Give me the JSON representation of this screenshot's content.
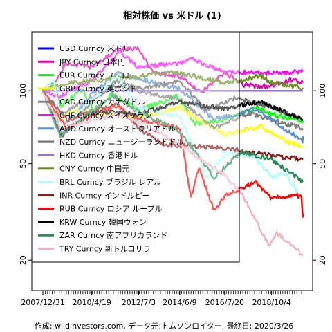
{
  "chart_data": {
    "type": "line",
    "title": "相対株価 vs 米ドル (1)",
    "caption": "作成: wildinvestors.com, データ元:トムソンロイター, 最終日: 2020/3/26",
    "y_scale": "log",
    "ylim": [
      15,
      175
    ],
    "y_ticks": [
      20,
      50,
      100
    ],
    "x_range": [
      "2007-12-31",
      "2020-03-26"
    ],
    "x_ticks": [
      {
        "date": "2007-12-31",
        "label": "2007/12/31"
      },
      {
        "date": "2010-04-19",
        "label": "2010/4/19"
      },
      {
        "date": "2012-07-03",
        "label": "2012/7/3"
      },
      {
        "date": "2014-06-09",
        "label": "2014/6/9"
      },
      {
        "date": "2016-07-20",
        "label": "2016/7/20"
      },
      {
        "date": "2018-10-04",
        "label": "2018/10/4"
      }
    ],
    "grid": false,
    "legend_position": "top-left",
    "series": [
      {
        "name": "USD Curncy 米ドル",
        "color": "#0000ff",
        "points": [
          [
            "2007-12-31",
            100
          ],
          [
            "2020-03-26",
            100
          ]
        ]
      },
      {
        "name": "JPY Curncy 日本円",
        "color": "#dd00aa",
        "points": [
          [
            "2007-12-31",
            100
          ],
          [
            "2008-09-15",
            112
          ],
          [
            "2009-01-20",
            130
          ],
          [
            "2010-04-19",
            125
          ],
          [
            "2011-09-01",
            150
          ],
          [
            "2012-07-03",
            148
          ],
          [
            "2013-04-01",
            118
          ],
          [
            "2014-06-09",
            115
          ],
          [
            "2015-06-01",
            98
          ],
          [
            "2016-07-20",
            118
          ],
          [
            "2017-06-01",
            106
          ],
          [
            "2018-10-04",
            104
          ],
          [
            "2019-08-01",
            111
          ],
          [
            "2020-03-26",
            108
          ]
        ]
      },
      {
        "name": "EUR Curncy ユーロ",
        "color": "#00ff00",
        "points": [
          [
            "2007-12-31",
            100
          ],
          [
            "2008-07-15",
            108
          ],
          [
            "2008-11-01",
            86
          ],
          [
            "2009-11-01",
            102
          ],
          [
            "2010-06-01",
            82
          ],
          [
            "2011-04-01",
            98
          ],
          [
            "2012-07-03",
            83
          ],
          [
            "2014-05-01",
            95
          ],
          [
            "2015-03-01",
            73
          ],
          [
            "2016-07-20",
            76
          ],
          [
            "2018-02-01",
            85
          ],
          [
            "2018-10-04",
            80
          ],
          [
            "2020-03-26",
            75
          ]
        ]
      },
      {
        "name": "GBP Curncy 英ポンド",
        "color": "#ffff00",
        "points": [
          [
            "2007-12-31",
            100
          ],
          [
            "2008-11-01",
            75
          ],
          [
            "2009-06-01",
            83
          ],
          [
            "2012-07-03",
            78
          ],
          [
            "2014-06-09",
            85
          ],
          [
            "2016-07-20",
            66
          ],
          [
            "2018-04-01",
            71
          ],
          [
            "2019-08-01",
            61
          ],
          [
            "2020-03-26",
            59
          ]
        ]
      },
      {
        "name": "CAD Curncy カナダドル",
        "color": "#808080",
        "points": [
          [
            "2007-12-31",
            100
          ],
          [
            "2008-11-01",
            80
          ],
          [
            "2011-06-01",
            105
          ],
          [
            "2012-07-03",
            100
          ],
          [
            "2014-06-09",
            92
          ],
          [
            "2016-01-20",
            70
          ],
          [
            "2017-09-01",
            81
          ],
          [
            "2018-10-04",
            76
          ],
          [
            "2020-03-26",
            70
          ]
        ]
      },
      {
        "name": "CHF Curncy スイスフラン",
        "color": "#ff00ff",
        "points": [
          [
            "2007-12-31",
            100
          ],
          [
            "2008-10-01",
            95
          ],
          [
            "2010-04-19",
            110
          ],
          [
            "2011-08-10",
            145
          ],
          [
            "2012-07-03",
            125
          ],
          [
            "2014-06-09",
            130
          ],
          [
            "2015-01-15",
            135
          ],
          [
            "2016-07-20",
            120
          ],
          [
            "2018-10-04",
            118
          ],
          [
            "2020-03-26",
            120
          ]
        ]
      },
      {
        "name": "AUD Curncy オーストラリアドル",
        "color": "#5b8fc9",
        "points": [
          [
            "2007-12-31",
            100
          ],
          [
            "2008-10-27",
            68
          ],
          [
            "2010-04-19",
            97
          ],
          [
            "2011-07-01",
            118
          ],
          [
            "2012-07-03",
            112
          ],
          [
            "2014-06-09",
            102
          ],
          [
            "2016-01-20",
            76
          ],
          [
            "2018-01-01",
            84
          ],
          [
            "2018-10-04",
            76
          ],
          [
            "2020-03-20",
            62
          ],
          [
            "2020-03-26",
            65
          ]
        ]
      },
      {
        "name": "NZD Curncy ニュージーランドドル",
        "color": "#666666",
        "points": [
          [
            "2007-12-31",
            100
          ],
          [
            "2008-10-27",
            70
          ],
          [
            "2011-07-01",
            110
          ],
          [
            "2012-07-03",
            102
          ],
          [
            "2014-06-09",
            110
          ],
          [
            "2015-09-01",
            83
          ],
          [
            "2017-01-01",
            93
          ],
          [
            "2018-10-04",
            86
          ],
          [
            "2020-03-26",
            76
          ]
        ]
      },
      {
        "name": "HKD Curncy 香港ドル",
        "color": "#9370db",
        "points": [
          [
            "2007-12-31",
            100
          ],
          [
            "2020-03-26",
            100
          ]
        ]
      },
      {
        "name": "CNY Curncy 中国元",
        "color": "#6b8e23",
        "points": [
          [
            "2007-12-31",
            100
          ],
          [
            "2009-01-01",
            107
          ],
          [
            "2012-07-03",
            115
          ],
          [
            "2014-01-15",
            120
          ],
          [
            "2016-07-20",
            108
          ],
          [
            "2018-04-01",
            115
          ],
          [
            "2018-10-04",
            108
          ],
          [
            "2020-03-26",
            103
          ]
        ]
      },
      {
        "name": "BRL Curncy ブラジル レアル",
        "color": "#aaffff",
        "points": [
          [
            "2007-12-31",
            100
          ],
          [
            "2008-07-01",
            112
          ],
          [
            "2008-12-01",
            70
          ],
          [
            "2011-07-01",
            115
          ],
          [
            "2012-07-03",
            85
          ],
          [
            "2014-06-09",
            78
          ],
          [
            "2015-09-24",
            44
          ],
          [
            "2016-07-20",
            55
          ],
          [
            "2017-12-01",
            54
          ],
          [
            "2018-10-04",
            44
          ],
          [
            "2019-06-01",
            46
          ],
          [
            "2020-03-26",
            35
          ]
        ]
      },
      {
        "name": "INR Curncy インドルピー",
        "color": "#8b1a1a",
        "points": [
          [
            "2007-12-31",
            100
          ],
          [
            "2009-03-01",
            76
          ],
          [
            "2011-07-01",
            88
          ],
          [
            "2012-07-03",
            70
          ],
          [
            "2013-08-28",
            60
          ],
          [
            "2016-07-20",
            58
          ],
          [
            "2018-10-04",
            54
          ],
          [
            "2020-03-26",
            52
          ]
        ]
      },
      {
        "name": "RUB Curncy ロシア ルーブル",
        "color": "#ff0000",
        "points": [
          [
            "2007-12-31",
            100
          ],
          [
            "2009-02-01",
            70
          ],
          [
            "2011-07-01",
            87
          ],
          [
            "2012-07-03",
            76
          ],
          [
            "2014-06-09",
            70
          ],
          [
            "2014-12-16",
            36
          ],
          [
            "2015-05-01",
            48
          ],
          [
            "2016-01-20",
            32
          ],
          [
            "2016-07-20",
            37
          ],
          [
            "2018-01-01",
            42
          ],
          [
            "2018-10-04",
            36
          ],
          [
            "2020-03-01",
            37
          ],
          [
            "2020-03-26",
            30
          ]
        ]
      },
      {
        "name": "KRW Curncy 韓国ウォン",
        "color": "#000000",
        "points": [
          [
            "2007-12-31",
            100
          ],
          [
            "2008-11-01",
            65
          ],
          [
            "2010-04-19",
            82
          ],
          [
            "2012-07-03",
            80
          ],
          [
            "2014-06-09",
            90
          ],
          [
            "2016-07-20",
            84
          ],
          [
            "2018-04-01",
            90
          ],
          [
            "2018-10-04",
            86
          ],
          [
            "2020-03-26",
            76
          ]
        ]
      },
      {
        "name": "ZAR Curncy 南アフリカランド",
        "color": "#2e8b57",
        "points": [
          [
            "2007-12-31",
            100
          ],
          [
            "2008-10-22",
            65
          ],
          [
            "2011-04-01",
            96
          ],
          [
            "2012-07-03",
            82
          ],
          [
            "2014-06-09",
            68
          ],
          [
            "2016-01-20",
            44
          ],
          [
            "2017-05-01",
            56
          ],
          [
            "2018-10-04",
            52
          ],
          [
            "2020-03-26",
            42
          ]
        ]
      },
      {
        "name": "TRY Curncy 新トルコリラ",
        "color": "#f0b0c0",
        "points": [
          [
            "2007-12-31",
            100
          ],
          [
            "2008-10-27",
            70
          ],
          [
            "2011-07-01",
            80
          ],
          [
            "2012-07-03",
            74
          ],
          [
            "2014-06-09",
            60
          ],
          [
            "2016-07-20",
            45
          ],
          [
            "2017-06-01",
            37
          ],
          [
            "2018-08-13",
            23
          ],
          [
            "2019-01-01",
            26
          ],
          [
            "2019-06-01",
            24
          ],
          [
            "2020-03-26",
            21
          ]
        ]
      }
    ]
  }
}
